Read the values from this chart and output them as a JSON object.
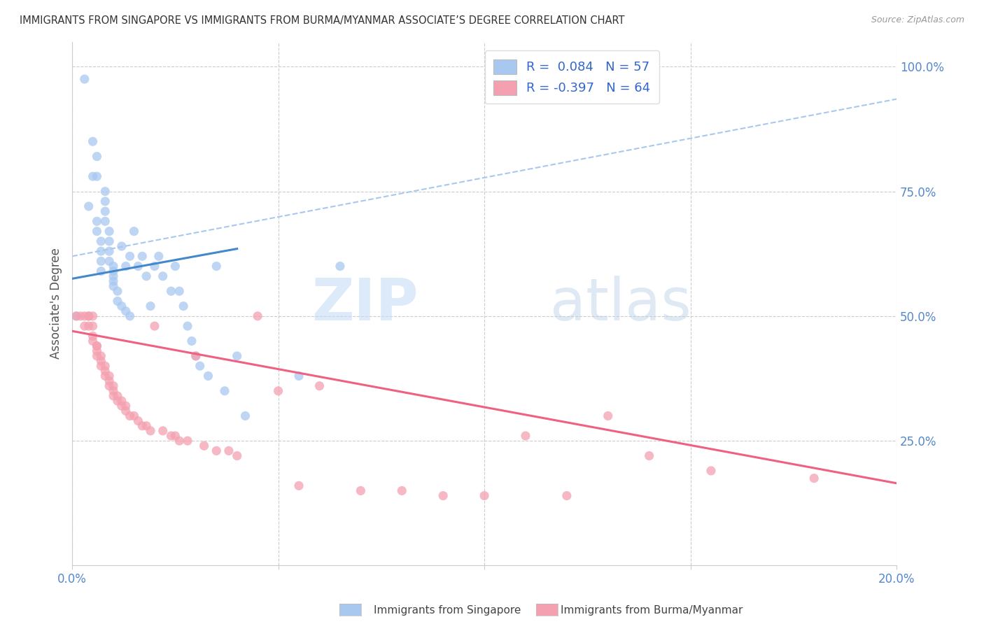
{
  "title": "IMMIGRANTS FROM SINGAPORE VS IMMIGRANTS FROM BURMA/MYANMAR ASSOCIATE’S DEGREE CORRELATION CHART",
  "source": "Source: ZipAtlas.com",
  "ylabel": "Associate's Degree",
  "xlim": [
    0.0,
    0.2
  ],
  "ylim": [
    0.0,
    1.05
  ],
  "yticks": [
    0.25,
    0.5,
    0.75,
    1.0
  ],
  "ytick_labels": [
    "25.0%",
    "50.0%",
    "75.0%",
    "100.0%"
  ],
  "singapore_R": 0.084,
  "singapore_N": 57,
  "burma_R": -0.397,
  "burma_N": 64,
  "singapore_color": "#a8c8f0",
  "burma_color": "#f4a0b0",
  "singapore_line_color": "#4488cc",
  "burma_line_color": "#f06080",
  "dashed_line_color": "#a8c8f0",
  "singapore_scatter_x": [
    0.001,
    0.003,
    0.005,
    0.006,
    0.005,
    0.004,
    0.006,
    0.006,
    0.007,
    0.007,
    0.006,
    0.007,
    0.007,
    0.008,
    0.008,
    0.008,
    0.008,
    0.009,
    0.009,
    0.009,
    0.009,
    0.01,
    0.01,
    0.01,
    0.01,
    0.01,
    0.011,
    0.011,
    0.012,
    0.012,
    0.013,
    0.013,
    0.014,
    0.014,
    0.015,
    0.016,
    0.017,
    0.018,
    0.019,
    0.02,
    0.021,
    0.022,
    0.024,
    0.025,
    0.026,
    0.027,
    0.028,
    0.029,
    0.03,
    0.031,
    0.033,
    0.035,
    0.037,
    0.04,
    0.042,
    0.055,
    0.065
  ],
  "singapore_scatter_y": [
    0.5,
    0.975,
    0.85,
    0.82,
    0.78,
    0.72,
    0.69,
    0.67,
    0.65,
    0.63,
    0.78,
    0.61,
    0.59,
    0.75,
    0.73,
    0.71,
    0.69,
    0.67,
    0.65,
    0.63,
    0.61,
    0.6,
    0.59,
    0.58,
    0.57,
    0.56,
    0.55,
    0.53,
    0.64,
    0.52,
    0.6,
    0.51,
    0.62,
    0.5,
    0.67,
    0.6,
    0.62,
    0.58,
    0.52,
    0.6,
    0.62,
    0.58,
    0.55,
    0.6,
    0.55,
    0.52,
    0.48,
    0.45,
    0.42,
    0.4,
    0.38,
    0.6,
    0.35,
    0.42,
    0.3,
    0.38,
    0.6
  ],
  "burma_scatter_x": [
    0.001,
    0.002,
    0.003,
    0.003,
    0.004,
    0.004,
    0.004,
    0.005,
    0.005,
    0.005,
    0.005,
    0.006,
    0.006,
    0.006,
    0.006,
    0.007,
    0.007,
    0.007,
    0.008,
    0.008,
    0.008,
    0.009,
    0.009,
    0.009,
    0.01,
    0.01,
    0.01,
    0.011,
    0.011,
    0.012,
    0.012,
    0.013,
    0.013,
    0.014,
    0.015,
    0.016,
    0.017,
    0.018,
    0.019,
    0.02,
    0.022,
    0.024,
    0.025,
    0.026,
    0.028,
    0.03,
    0.032,
    0.035,
    0.038,
    0.04,
    0.045,
    0.05,
    0.055,
    0.06,
    0.07,
    0.08,
    0.09,
    0.1,
    0.11,
    0.12,
    0.13,
    0.14,
    0.155,
    0.18
  ],
  "burma_scatter_y": [
    0.5,
    0.5,
    0.5,
    0.48,
    0.5,
    0.5,
    0.48,
    0.5,
    0.48,
    0.46,
    0.45,
    0.44,
    0.44,
    0.43,
    0.42,
    0.42,
    0.41,
    0.4,
    0.4,
    0.39,
    0.38,
    0.38,
    0.37,
    0.36,
    0.36,
    0.35,
    0.34,
    0.34,
    0.33,
    0.33,
    0.32,
    0.32,
    0.31,
    0.3,
    0.3,
    0.29,
    0.28,
    0.28,
    0.27,
    0.48,
    0.27,
    0.26,
    0.26,
    0.25,
    0.25,
    0.42,
    0.24,
    0.23,
    0.23,
    0.22,
    0.5,
    0.35,
    0.16,
    0.36,
    0.15,
    0.15,
    0.14,
    0.14,
    0.26,
    0.14,
    0.3,
    0.22,
    0.19,
    0.175
  ],
  "singapore_trend_x": [
    0.0,
    0.04
  ],
  "singapore_trend_y": [
    0.575,
    0.635
  ],
  "burma_trend_x": [
    0.0,
    0.2
  ],
  "burma_trend_y": [
    0.47,
    0.165
  ],
  "dashed_trend_x": [
    0.0,
    0.2
  ],
  "dashed_trend_y": [
    0.62,
    0.935
  ]
}
